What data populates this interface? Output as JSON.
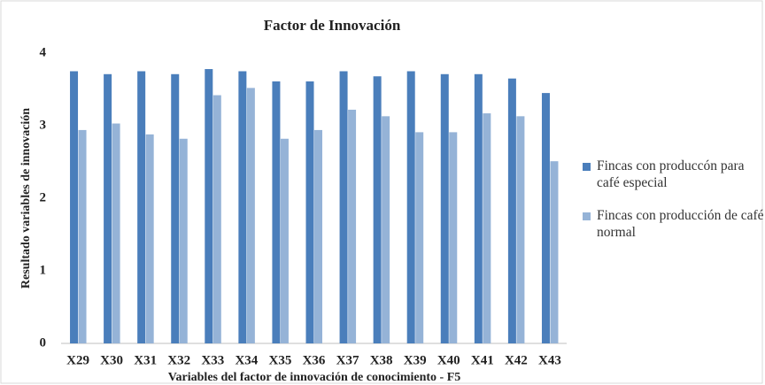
{
  "chart_data": {
    "type": "bar",
    "title": "Factor de Innovación",
    "x_label": "Variables  del factor de innovación de conocimiento - F5",
    "y_label": "Resultado variables de innovación",
    "categories": [
      "X29",
      "X30",
      "X31",
      "X32",
      "X33",
      "X34",
      "X35",
      "X36",
      "X37",
      "X38",
      "X39",
      "X40",
      "X41",
      "X42",
      "X43"
    ],
    "series": [
      {
        "name": "Fincas con produccón para café especial",
        "color": "#4a7ebb",
        "values": [
          3.75,
          3.71,
          3.75,
          3.71,
          3.78,
          3.75,
          3.61,
          3.61,
          3.75,
          3.68,
          3.75,
          3.71,
          3.71,
          3.65,
          3.45
        ]
      },
      {
        "name": "Fincas con producción de café normal",
        "color": "#95b3d7",
        "values": [
          2.94,
          3.03,
          2.88,
          2.82,
          3.42,
          3.52,
          2.82,
          2.94,
          3.22,
          3.13,
          2.91,
          2.91,
          3.17,
          3.13,
          2.51
        ]
      }
    ],
    "ylim": [
      0,
      4
    ],
    "yticks": [
      0,
      1,
      2,
      3,
      4
    ],
    "grid": false,
    "legend": "right"
  }
}
